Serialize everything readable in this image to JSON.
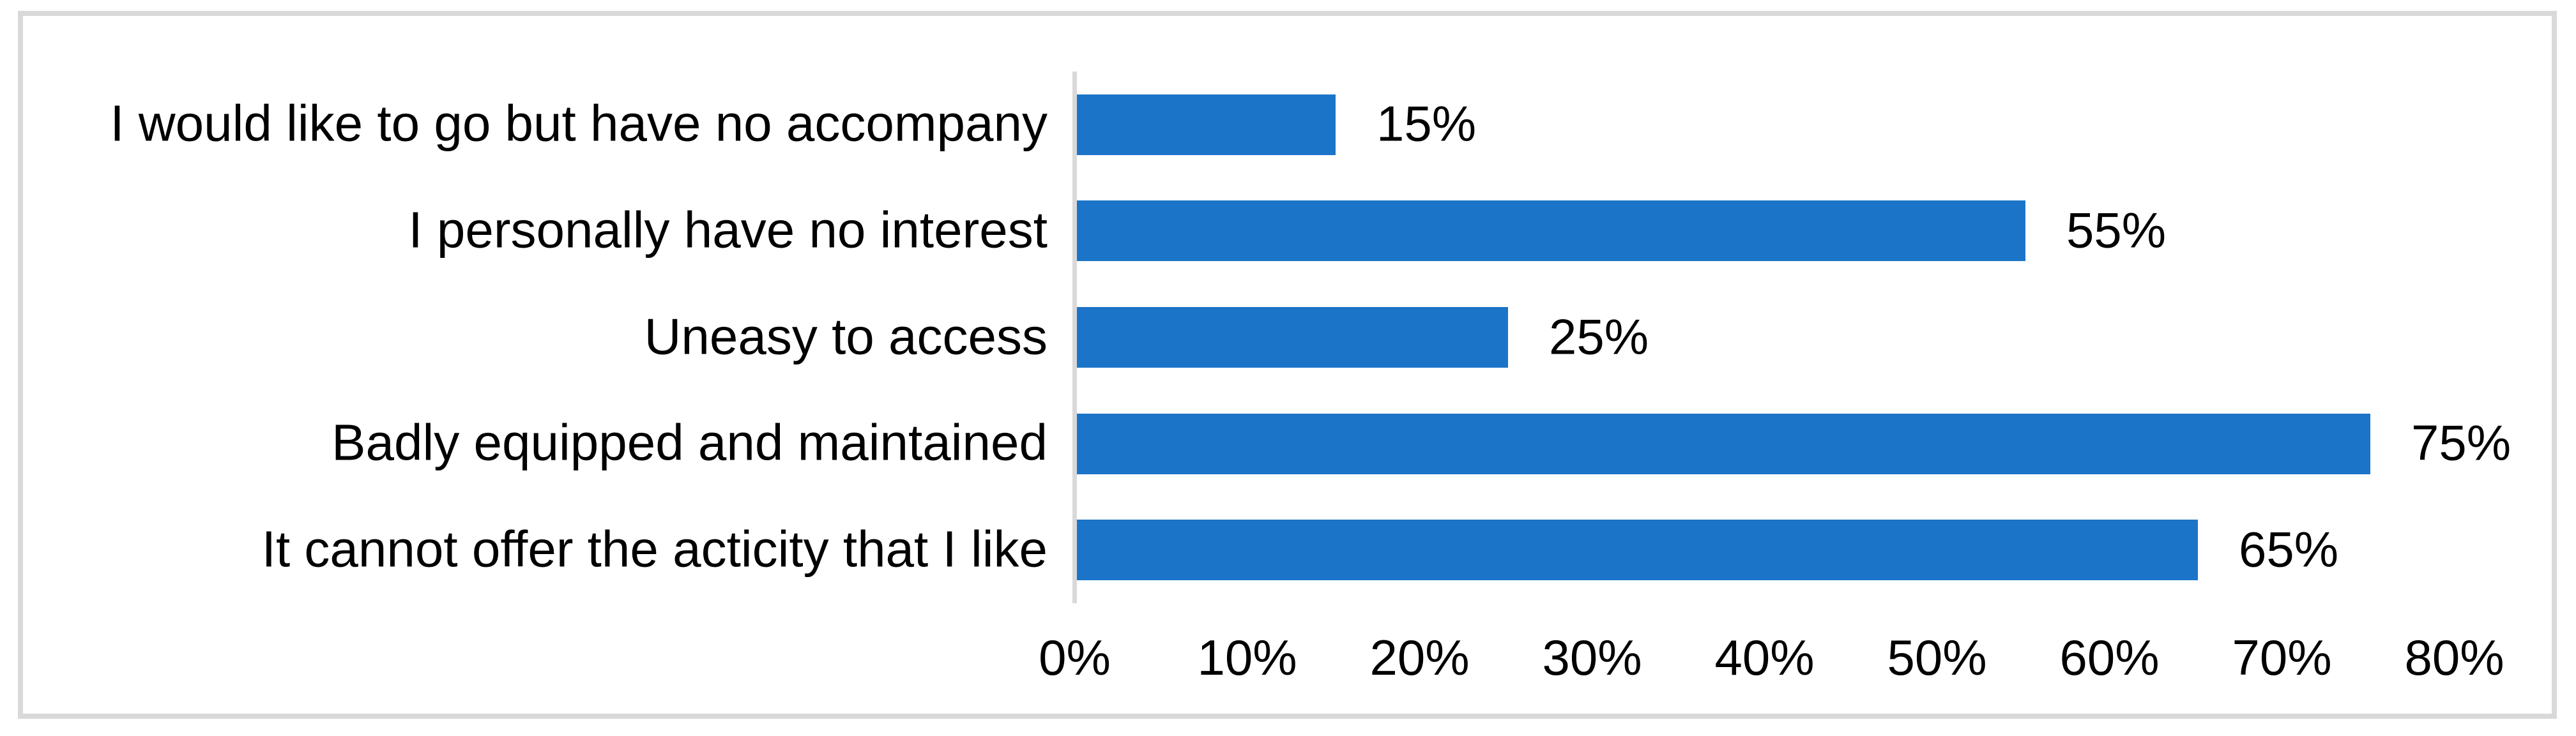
{
  "chart_data": {
    "type": "bar",
    "orientation": "horizontal",
    "title": "",
    "xlabel": "",
    "ylabel": "",
    "categories": [
      "I would like to go but have no accompany",
      "I personally have no interest",
      "Uneasy to access",
      "Badly equipped and maintained",
      "It cannot offer the acticity that I like"
    ],
    "values": [
      15,
      55,
      25,
      75,
      65
    ],
    "data_labels": [
      "15%",
      "55%",
      "25%",
      "75%",
      "65%"
    ],
    "x_ticks": [
      "0%",
      "10%",
      "20%",
      "30%",
      "40%",
      "50%",
      "60%",
      "70%",
      "80%"
    ],
    "xlim": [
      0,
      80
    ],
    "grid": "off",
    "legend": "none",
    "colors": {
      "bar": "#1B74C8",
      "axis_line": "#D9D9D9",
      "frame_border": "#D9D9D9",
      "text": "#000000",
      "background": "#FFFFFF"
    }
  }
}
